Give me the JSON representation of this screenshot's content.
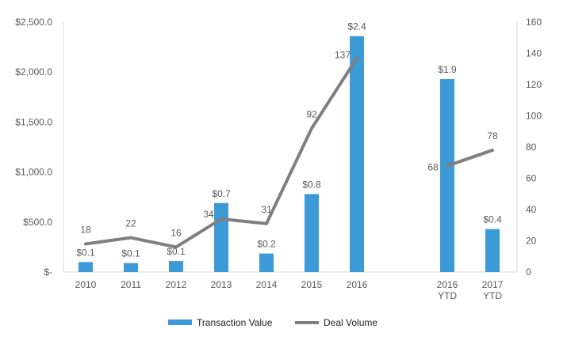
{
  "chart_data": {
    "type": "bar",
    "categories": [
      [
        "2010"
      ],
      [
        "2011"
      ],
      [
        "2012"
      ],
      [
        "2013"
      ],
      [
        "2014"
      ],
      [
        "2015"
      ],
      [
        "2016"
      ],
      [
        "2016",
        "YTD"
      ],
      [
        "2017",
        "YTD"
      ]
    ],
    "series": [
      {
        "name": "Transaction Value",
        "type": "bar",
        "axis": "left",
        "color": "#3C9AD6",
        "values": [
          100,
          90,
          110,
          690,
          185,
          780,
          2360,
          1930,
          430
        ],
        "labels": [
          "$0.1",
          "$0.1",
          "$0.1",
          "$0.7",
          "$0.2",
          "$0.8",
          "$2.4",
          "$1.9",
          "$0.4"
        ]
      },
      {
        "name": "Deal Volume",
        "type": "line",
        "axis": "right",
        "color": "#7F7F7F",
        "values": [
          18,
          22,
          16,
          34,
          31,
          92,
          137,
          68,
          78
        ],
        "labels": [
          "18",
          "22",
          "16",
          "34",
          "31",
          "92",
          "137",
          "68",
          "78"
        ],
        "segments": [
          [
            0,
            6
          ],
          [
            7,
            8
          ]
        ]
      }
    ],
    "y_left": {
      "min": 0,
      "max": 2500,
      "ticks": [
        0,
        500,
        1000,
        1500,
        2000,
        2500
      ],
      "tick_labels": [
        "$-",
        "$500.0",
        "$1,000.0",
        "$1,500.0",
        "$2,000.0",
        "$2,500.0"
      ]
    },
    "y_right": {
      "min": 0,
      "max": 160,
      "ticks": [
        0,
        20,
        40,
        60,
        80,
        100,
        120,
        140,
        160
      ],
      "tick_labels": [
        "0",
        "20",
        "40",
        "60",
        "80",
        "100",
        "120",
        "140",
        "160"
      ]
    },
    "grid": false,
    "legend": {
      "position": "bottom",
      "entries": [
        "Transaction Value",
        "Deal Volume"
      ]
    }
  }
}
